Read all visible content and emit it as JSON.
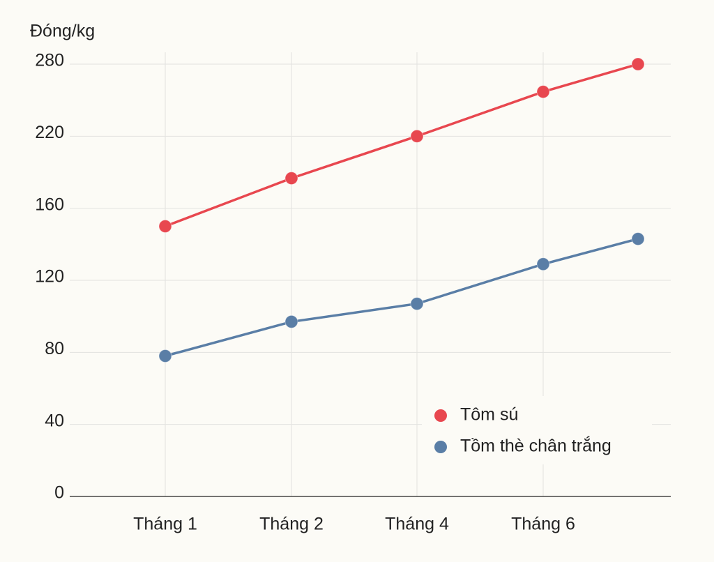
{
  "chart_data": {
    "type": "line",
    "y_label": "Đóng/kg",
    "categories": [
      "Tháng 1",
      "Tháng 2",
      "Tháng 4",
      "Tháng 6",
      null
    ],
    "series": [
      {
        "name": "Tôm sú",
        "color": "#e8474f",
        "values": [
          150,
          185,
          220,
          257,
          280
        ]
      },
      {
        "name": "Tồm thè chân trắng",
        "color": "#5a7ea6",
        "values": [
          78,
          97,
          107,
          129,
          143
        ]
      }
    ],
    "ylim": [
      0,
      280
    ],
    "yticks": [
      0,
      40,
      80,
      120,
      160,
      220,
      280
    ],
    "grid": true
  }
}
